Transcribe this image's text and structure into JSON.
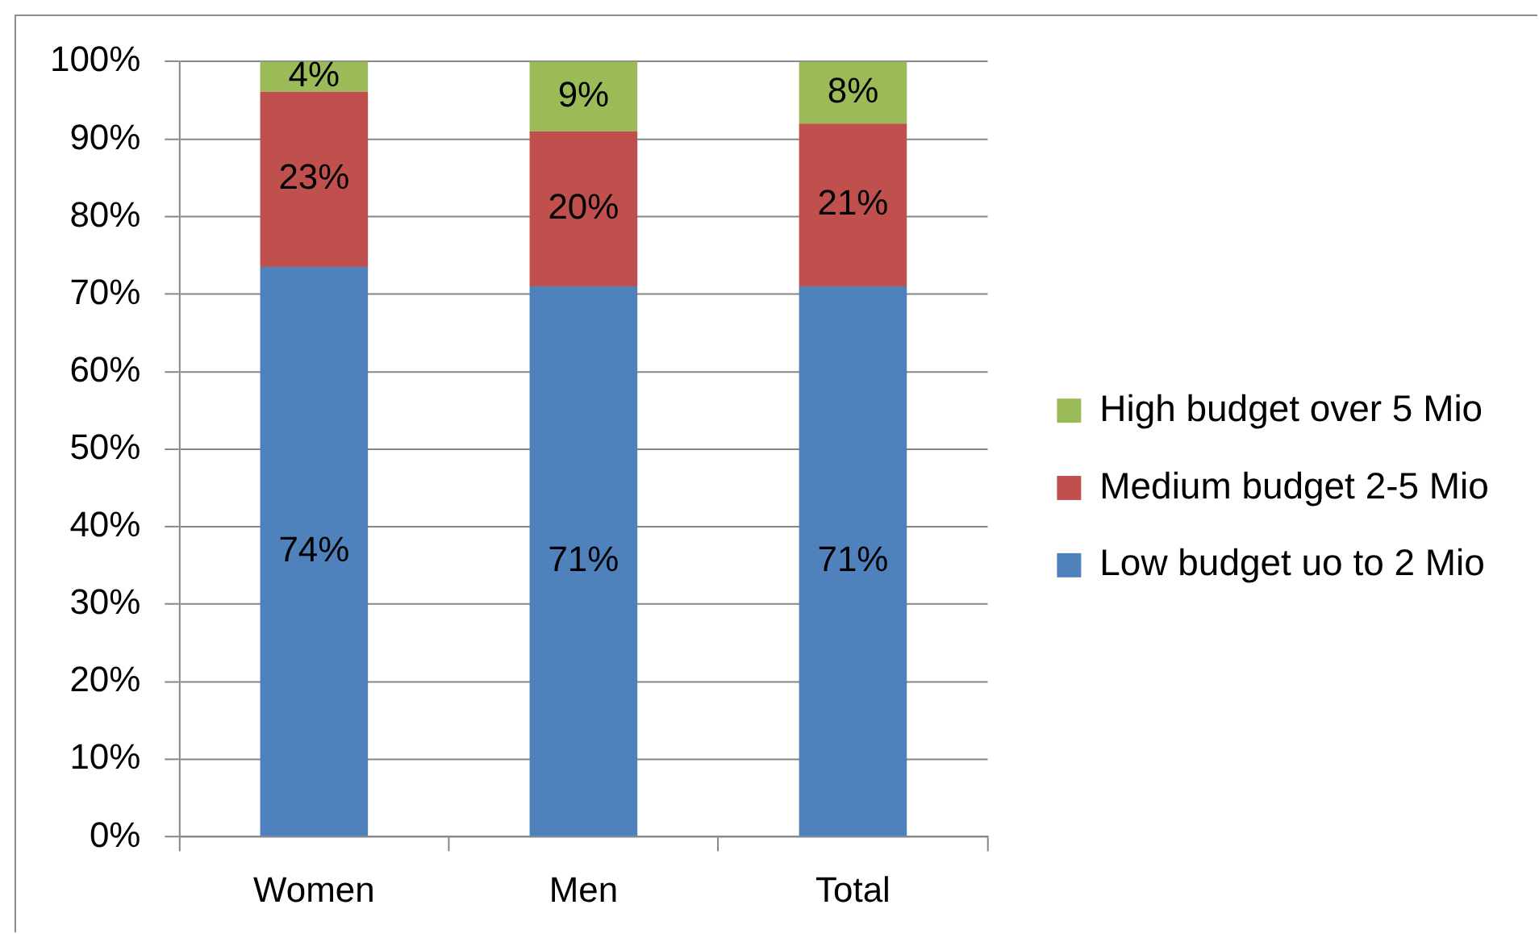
{
  "chart_data": {
    "type": "bar",
    "stacked": true,
    "categories": [
      "Women",
      "Men",
      "Total"
    ],
    "series": [
      {
        "name": "Low budget uo to 2 Mio",
        "color": "#4f81bd",
        "values": [
          73.5,
          71,
          71
        ],
        "value_labels": [
          "74%",
          "71%",
          "71%"
        ]
      },
      {
        "name": "Medium budget 2-5 Mio",
        "color": "#c0504d",
        "values": [
          22.6,
          20,
          21
        ],
        "value_labels": [
          "23%",
          "20%",
          "21%"
        ]
      },
      {
        "name": "High budget over 5 Mio",
        "color": "#9bbb59",
        "values": [
          3.9,
          9,
          8
        ],
        "value_labels": [
          "4%",
          "9%",
          "8%"
        ]
      }
    ],
    "ylim": [
      0,
      100
    ],
    "yticks": [
      {
        "value": 0,
        "label": "0%"
      },
      {
        "value": 10,
        "label": "10%"
      },
      {
        "value": 20,
        "label": "20%"
      },
      {
        "value": 30,
        "label": "30%"
      },
      {
        "value": 40,
        "label": "40%"
      },
      {
        "value": 50,
        "label": "50%"
      },
      {
        "value": 60,
        "label": "60%"
      },
      {
        "value": 70,
        "label": "70%"
      },
      {
        "value": 80,
        "label": "80%"
      },
      {
        "value": 90,
        "label": "90%"
      },
      {
        "value": 100,
        "label": "100%"
      }
    ],
    "grid": "y",
    "legend": "right"
  }
}
